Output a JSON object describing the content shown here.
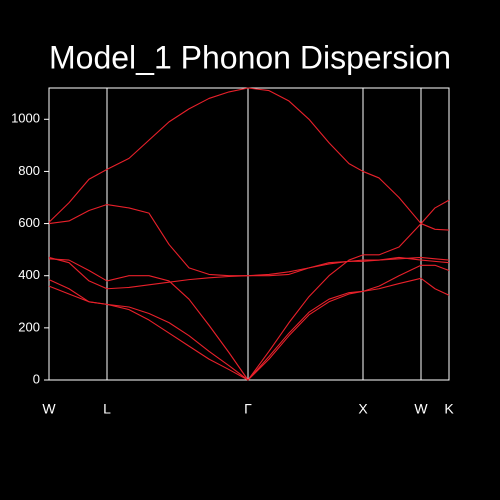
{
  "chart_data": {
    "type": "line",
    "title": "Model_1 Phonon Dispersion",
    "x": [
      0,
      20,
      40,
      58,
      80,
      100,
      120,
      140,
      160,
      180,
      199,
      220,
      240,
      260,
      280,
      300,
      314,
      330,
      350,
      372,
      386,
      400
    ],
    "series": [
      {
        "color": "#e8202a",
        "values": [
          605,
          680,
          770,
          808,
          850,
          920,
          990,
          1040,
          1080,
          1105,
          1120,
          1110,
          1070,
          1000,
          910,
          830,
          800,
          775,
          700,
          600,
          578,
          575
        ]
      },
      {
        "color": "#e8202a",
        "values": [
          600,
          610,
          650,
          673,
          660,
          640,
          520,
          430,
          405,
          400,
          400,
          405,
          415,
          430,
          445,
          455,
          460,
          460,
          465,
          470,
          465,
          460
        ]
      },
      {
        "color": "#e8202a",
        "values": [
          470,
          450,
          380,
          350,
          355,
          365,
          375,
          385,
          392,
          397,
          400,
          400,
          405,
          430,
          450,
          455,
          455,
          460,
          470,
          460,
          455,
          450
        ]
      },
      {
        "color": "#e8202a",
        "values": [
          465,
          460,
          420,
          380,
          400,
          400,
          380,
          310,
          210,
          105,
          0,
          110,
          220,
          320,
          400,
          460,
          480,
          480,
          510,
          600,
          660,
          690
        ]
      },
      {
        "color": "#e8202a",
        "values": [
          385,
          350,
          300,
          290,
          280,
          255,
          220,
          170,
          110,
          55,
          0,
          90,
          180,
          260,
          310,
          335,
          340,
          350,
          370,
          390,
          350,
          325
        ]
      },
      {
        "color": "#e8202a",
        "values": [
          360,
          330,
          300,
          290,
          270,
          230,
          180,
          130,
          80,
          40,
          0,
          80,
          170,
          250,
          300,
          330,
          340,
          360,
          400,
          440,
          440,
          420
        ]
      }
    ],
    "xlim": [
      0,
      400
    ],
    "xticks": [
      {
        "value": 0,
        "label": "W"
      },
      {
        "value": 58,
        "label": "L"
      },
      {
        "value": 199,
        "label": "Γ"
      },
      {
        "value": 314,
        "label": "X"
      },
      {
        "value": 372,
        "label": "W"
      },
      {
        "value": 400,
        "label": "K"
      }
    ],
    "ylim": [
      0,
      1120
    ],
    "yticks": [
      0,
      200,
      400,
      600,
      800,
      1000
    ],
    "grid": "x"
  }
}
